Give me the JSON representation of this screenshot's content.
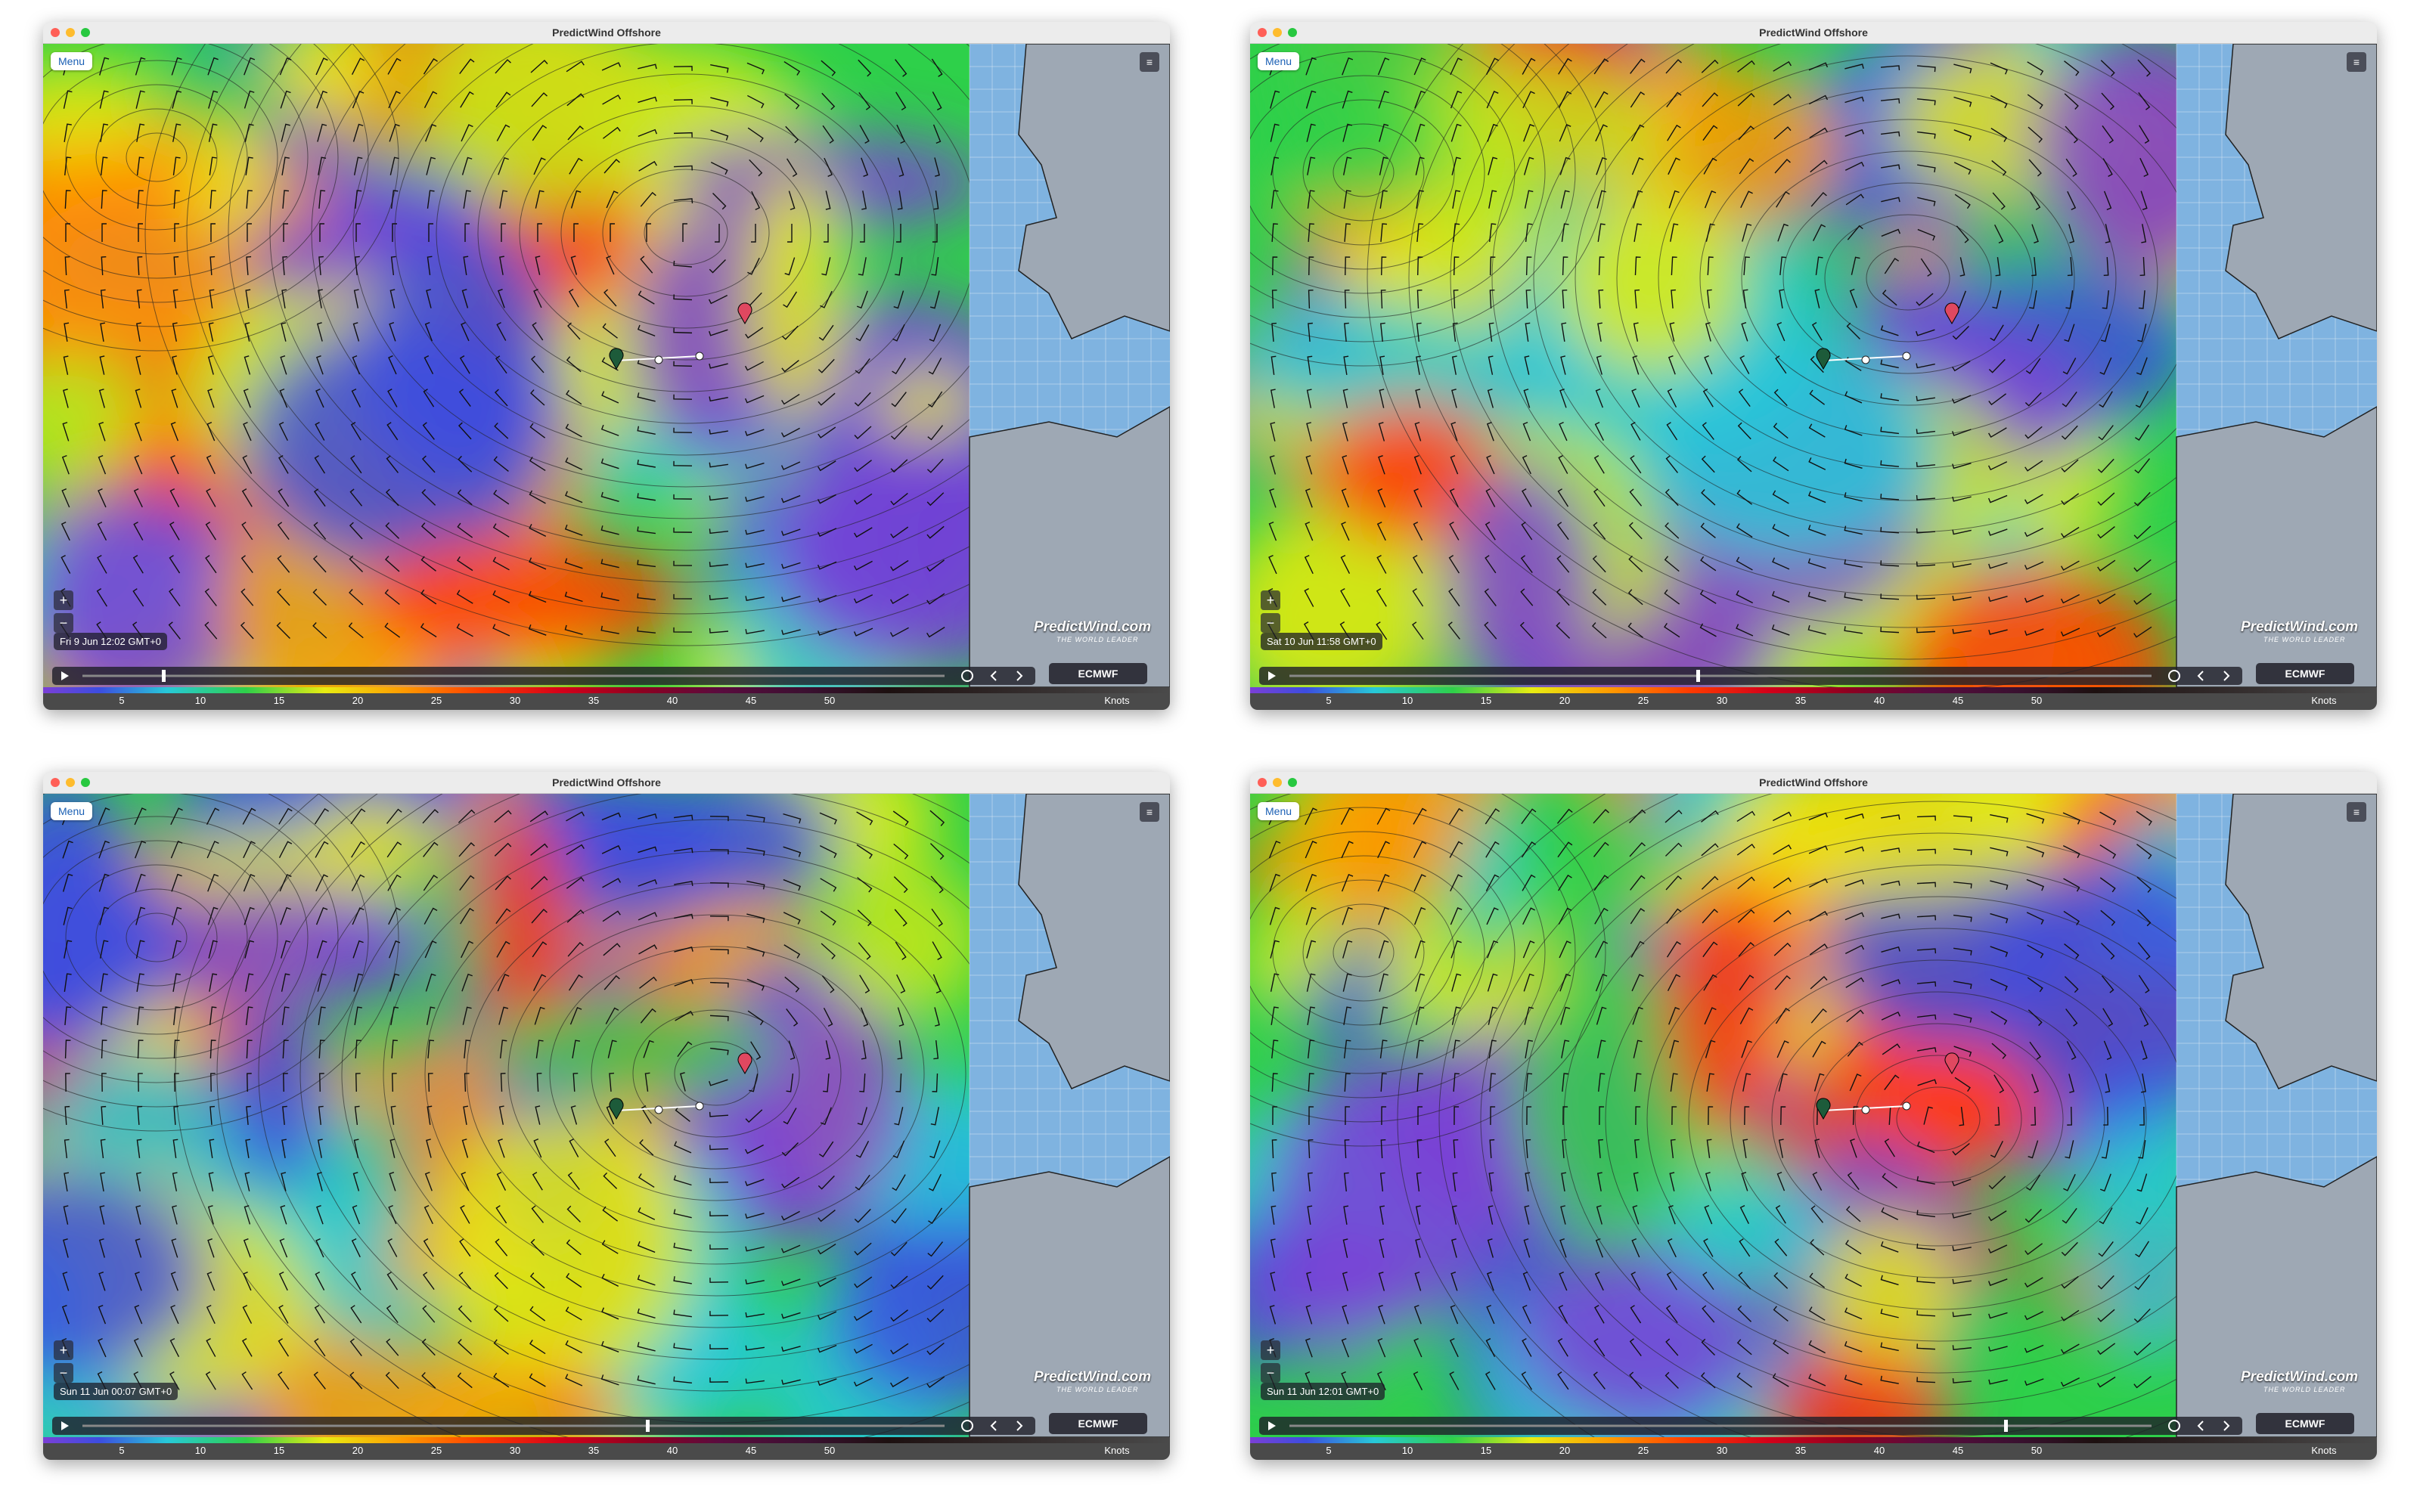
{
  "app_title": "PredictWind Offshore",
  "menu": "Menu",
  "model": "ECMWF",
  "units": "Knots",
  "logo": "PredictWind.com",
  "tagline": "THE WORLD LEADER",
  "scale": [
    5,
    10,
    15,
    20,
    25,
    30,
    35,
    40,
    45,
    50
  ],
  "windows": [
    {
      "timestamp": "Fri 9 Jun 12:02 GMT+0"
    },
    {
      "timestamp": "Sat 10 Jun 11:58 GMT+0"
    },
    {
      "timestamp": "Sun 11 Jun 00:07 GMT+0"
    },
    {
      "timestamp": "Sun 11 Jun 12:01 GMT+0"
    }
  ]
}
